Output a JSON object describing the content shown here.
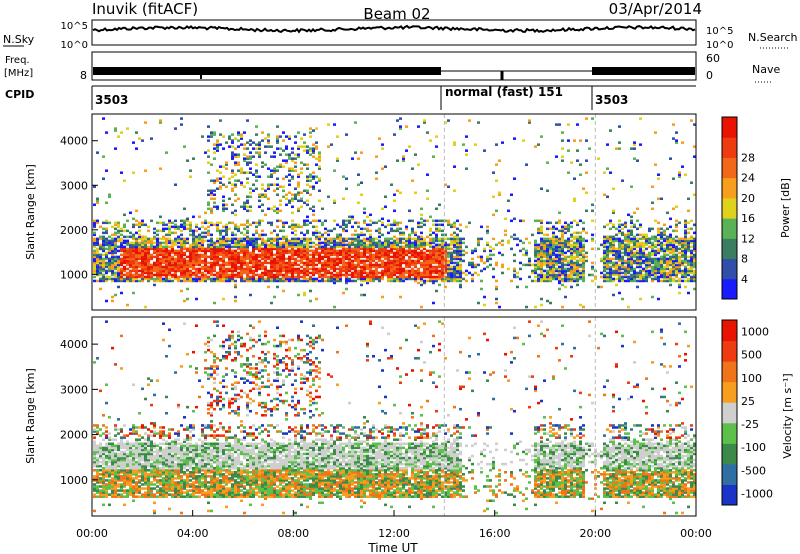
{
  "header": {
    "title": "Inuvik (fitACF)",
    "beam": "Beam 02",
    "date": "03/Apr/2014"
  },
  "nsky_panel": {
    "left_label": "N.Sky",
    "right_label": "N.Search",
    "right_ticks": [
      "10^5",
      "10^0"
    ],
    "left_ticks": [
      "10^5",
      "10^0"
    ]
  },
  "freq_panel": {
    "left_label_top": "Freq.",
    "left_label_bottom": "[MHz]",
    "left_tick": "8",
    "right_label": "Nave",
    "right_ticks": [
      "60",
      "0"
    ]
  },
  "cpid_panel": {
    "label": "CPID",
    "segments": [
      {
        "text": "3503",
        "start_hour": 0
      },
      {
        "text": "normal (fast) 151",
        "start_hour": 14
      },
      {
        "text": "3503",
        "start_hour": 20
      }
    ]
  },
  "x_axis": {
    "label": "Time UT",
    "ticks": [
      "00:00",
      "04:00",
      "08:00",
      "12:00",
      "16:00",
      "20:00",
      "00:00"
    ]
  },
  "chart_data": [
    {
      "type": "heatmap",
      "name": "power",
      "ylabel": "Slant Range [km]",
      "yticks": [
        1000,
        2000,
        3000,
        4000
      ],
      "ylim": [
        200,
        4600
      ],
      "xlim_hours": [
        0,
        24
      ],
      "colorbar_label": "Power [dB]",
      "colorbar_ticks": [
        4,
        8,
        12,
        16,
        20,
        24,
        28
      ],
      "colorbar_colors": [
        "#1a1aff",
        "#2f4fa8",
        "#3b7d60",
        "#5bb155",
        "#e0d21c",
        "#f79e1e",
        "#f36818",
        "#ee3b10",
        "#e81300"
      ],
      "dominant_band_km": [
        800,
        1800
      ]
    },
    {
      "type": "heatmap",
      "name": "velocity",
      "ylabel": "Slant Range [km]",
      "yticks": [
        1000,
        2000,
        3000,
        4000
      ],
      "ylim": [
        200,
        4600
      ],
      "xlim_hours": [
        0,
        24
      ],
      "colorbar_label": "Velocity [m s⁻¹]",
      "colorbar_ticks": [
        "1000",
        "500",
        "100",
        "25",
        "-25",
        "-100",
        "-500",
        "-1000"
      ],
      "colorbar_colors": [
        "#1a33c8",
        "#2f6fa4",
        "#3b8a4a",
        "#5cc04a",
        "#cfcfcf",
        "#f79e1e",
        "#f0741a",
        "#ee3b10",
        "#e81300"
      ],
      "dominant_band_km": [
        600,
        1800
      ]
    }
  ]
}
